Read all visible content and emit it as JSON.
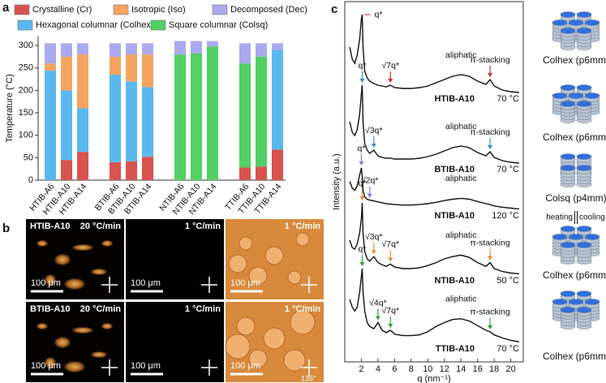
{
  "panel_labels": [
    "a",
    "b",
    "c"
  ],
  "chart_data": [
    {
      "type": "stacked-bar",
      "ylabel": "Temperature (°C)",
      "categories": [
        "HTIB-A6",
        "HTIB-A10",
        "HTIB-A14",
        "BTIB-A6",
        "BTIB-A10",
        "BTIB-A14",
        "NTIB-A6",
        "NTIB-A10",
        "NTIB-A14",
        "TTIB-A6",
        "TTIB-A10",
        "TTIB-A14"
      ],
      "series": [
        {
          "name": "Crystalline (Cr)",
          "color": "#d9534f",
          "values": [
            0,
            45,
            63,
            40,
            42,
            52,
            0,
            0,
            0,
            28,
            30,
            68
          ]
        },
        {
          "name": "Hexagonal columnar (Colhex)",
          "color": "#5bb8ee",
          "values": [
            244,
            155,
            97,
            195,
            178,
            155,
            0,
            0,
            0,
            0,
            0,
            222
          ]
        },
        {
          "name": "Square columnar (Colsq)",
          "color": "#52d064",
          "values": [
            0,
            0,
            0,
            0,
            0,
            0,
            280,
            282,
            298,
            232,
            245,
            0
          ]
        },
        {
          "name": "Isotropic (Iso)",
          "color": "#f5a460",
          "values": [
            16,
            75,
            120,
            40,
            60,
            73,
            0,
            0,
            0,
            0,
            0,
            0
          ]
        },
        {
          "name": "Decomposed (Dec)",
          "color": "#aaaaee",
          "values": [
            45,
            30,
            25,
            30,
            25,
            25,
            30,
            28,
            12,
            45,
            30,
            15
          ]
        }
      ],
      "ylim": [
        0,
        320
      ],
      "yticks": [
        0,
        50,
        100,
        150,
        200,
        250,
        300
      ]
    },
    {
      "type": "line",
      "xlabel": "q (nm⁻¹)",
      "ylabel": "Intensity (a.u.)",
      "xlim": [
        0,
        21.5
      ],
      "xticks": [
        2,
        4,
        6,
        8,
        10,
        12,
        14,
        16,
        18,
        20
      ],
      "x": [
        0.6,
        0.9,
        1.2,
        1.5,
        1.8,
        2.0,
        2.1,
        2.2,
        2.4,
        2.7,
        3,
        3.5,
        4,
        4.5,
        5,
        5.5,
        6,
        7,
        8,
        9,
        10,
        11,
        12,
        13,
        14,
        15,
        16,
        17,
        17.5,
        18,
        19,
        20,
        21
      ],
      "series": [
        {
          "name": "HTIB-A10",
          "temperature": "70 °C",
          "color": "#d0302a",
          "values": [
            0.6,
            0.45,
            0.4,
            0.5,
            0.7,
            0.95,
            1.0,
            0.6,
            0.3,
            0.22,
            0.18,
            0.15,
            0.13,
            0.12,
            0.11,
            0.13,
            0.1,
            0.09,
            0.09,
            0.1,
            0.12,
            0.16,
            0.2,
            0.24,
            0.26,
            0.24,
            0.18,
            0.14,
            0.2,
            0.12,
            0.07,
            0.05,
            0.04
          ],
          "peaks": [
            {
              "label": "q*",
              "x": 2.1
            },
            {
              "label": "√7q*",
              "x": 5.5
            },
            {
              "label": "aliphatic",
              "x": 14,
              "arrow": false
            },
            {
              "label": "π-stacking",
              "x": 17.5
            }
          ]
        },
        {
          "name": "BTIB-A10",
          "temperature": "70 °C",
          "color": "#2f8fd8",
          "values": [
            0.55,
            0.42,
            0.38,
            0.45,
            0.65,
            0.9,
            1.0,
            0.55,
            0.28,
            0.2,
            0.16,
            0.2,
            0.13,
            0.11,
            0.1,
            0.1,
            0.09,
            0.09,
            0.09,
            0.1,
            0.12,
            0.15,
            0.19,
            0.23,
            0.25,
            0.23,
            0.17,
            0.13,
            0.18,
            0.11,
            0.07,
            0.05,
            0.04
          ],
          "peaks": [
            {
              "label": "q*",
              "x": 2.1
            },
            {
              "label": "√3q*",
              "x": 3.5
            },
            {
              "label": "aliphatic",
              "x": 14,
              "arrow": false
            },
            {
              "label": "π-stacking",
              "x": 17.5
            }
          ]
        },
        {
          "name": "NTIB-A10",
          "temperature": "120 °C",
          "color": "#7d7dd8",
          "values": [
            0.7,
            0.55,
            0.5,
            0.6,
            0.85,
            1.0,
            0.8,
            0.5,
            0.35,
            0.3,
            0.28,
            0.26,
            0.24,
            0.22,
            0.2,
            0.19,
            0.18,
            0.17,
            0.17,
            0.18,
            0.2,
            0.23,
            0.27,
            0.3,
            0.32,
            0.3,
            0.25,
            0.2,
            0.18,
            0.15,
            0.12,
            0.1,
            0.08
          ],
          "peaks": [
            {
              "label": "q*",
              "x": 2.0
            },
            {
              "label": "√2q*",
              "x": 3
            },
            {
              "label": "aliphatic",
              "x": 14,
              "arrow": false
            }
          ]
        },
        {
          "name": "NTIB-A10",
          "temperature": "50 °C",
          "color": "#ef8a2e",
          "values": [
            0.5,
            0.4,
            0.38,
            0.45,
            0.6,
            0.8,
            1.0,
            0.6,
            0.35,
            0.25,
            0.22,
            0.28,
            0.2,
            0.17,
            0.15,
            0.18,
            0.14,
            0.12,
            0.12,
            0.13,
            0.16,
            0.2,
            0.25,
            0.28,
            0.3,
            0.27,
            0.2,
            0.15,
            0.2,
            0.12,
            0.08,
            0.06,
            0.05
          ],
          "peaks": [
            {
              "label": "q*",
              "x": 2.1
            },
            {
              "label": "√3q*",
              "x": 3.5
            },
            {
              "label": "√7q*",
              "x": 5.5
            },
            {
              "label": "aliphatic",
              "x": 14,
              "arrow": false
            },
            {
              "label": "π-stacking",
              "x": 17.5
            }
          ]
        },
        {
          "name": "TTIB-A10",
          "temperature": "70 °C",
          "color": "#27a63a",
          "values": [
            0.6,
            0.5,
            0.45,
            0.5,
            0.7,
            0.9,
            1.0,
            0.7,
            0.45,
            0.3,
            0.25,
            0.22,
            0.3,
            0.2,
            0.17,
            0.2,
            0.15,
            0.13,
            0.13,
            0.14,
            0.18,
            0.25,
            0.3,
            0.34,
            0.35,
            0.32,
            0.26,
            0.2,
            0.18,
            0.14,
            0.1,
            0.07,
            0.05
          ],
          "peaks": [
            {
              "label": "q*",
              "x": 2.1
            },
            {
              "label": "√4q*",
              "x": 4
            },
            {
              "label": "√7q*",
              "x": 5.5
            },
            {
              "label": "aliphatic",
              "x": 14,
              "arrow": false
            },
            {
              "label": "π-stacking",
              "x": 17.5
            }
          ]
        }
      ]
    }
  ],
  "micrographs": [
    {
      "sample": "HTIB-A10",
      "rate": "20 °C/min",
      "scale": "100 μm"
    },
    {
      "rate": "1 °C/min",
      "scale": "100 μm"
    },
    {
      "rate": "1 °C/min",
      "scale": "100 μm"
    },
    {
      "sample": "BTIB-A10",
      "rate": "20 °C/min",
      "scale": "100 μm"
    },
    {
      "rate": "1 °C/min",
      "scale": "100 μm"
    },
    {
      "rate": "1 °C/min",
      "scale": "100 μm",
      "angle": "135°"
    }
  ],
  "phases": [
    {
      "label": "Colhex (p6mm)",
      "color": "#d0302a"
    },
    {
      "label": "Colhex (p6mm)",
      "color": "#2f8fd8"
    },
    {
      "label": "Colsq (p4mm)",
      "color": "#7d7dd8"
    },
    {
      "label": "Colhex (p6mm)",
      "color": "#ef8a2e"
    },
    {
      "label": "Colhex (p6mm)",
      "color": "#27a63a"
    }
  ],
  "transition": {
    "heating": "heating",
    "cooling": "cooling"
  }
}
